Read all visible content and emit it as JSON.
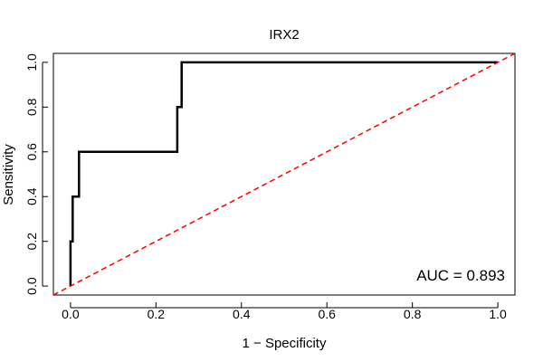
{
  "chart_data": {
    "type": "line",
    "title": "IRX2",
    "xlabel": "1 − Specificity",
    "ylabel": "Sensitivity",
    "xlim": [
      -0.04,
      1.04
    ],
    "ylim": [
      -0.04,
      1.04
    ],
    "x_ticks": [
      0.0,
      0.2,
      0.4,
      0.6,
      0.8,
      1.0
    ],
    "y_ticks": [
      0.0,
      0.2,
      0.4,
      0.6,
      0.8,
      1.0
    ],
    "x_tick_labels": [
      "0.0",
      "0.2",
      "0.4",
      "0.6",
      "0.8",
      "1.0"
    ],
    "y_tick_labels": [
      "0.0",
      "0.2",
      "0.4",
      "0.6",
      "0.8",
      "1.0"
    ],
    "grid": false,
    "series": [
      {
        "color": "#000000",
        "style": "solid",
        "x": [
          0.0,
          0.0,
          0.005,
          0.005,
          0.02,
          0.02,
          0.25,
          0.25,
          0.26,
          0.26,
          1.0
        ],
        "y": [
          0.0,
          0.2,
          0.2,
          0.4,
          0.4,
          0.6,
          0.6,
          0.8,
          0.8,
          1.0,
          1.0
        ]
      },
      {
        "color": "#ff0000",
        "style": "dashed",
        "x": [
          -0.04,
          1.04
        ],
        "y": [
          -0.04,
          1.04
        ]
      }
    ],
    "annotation": {
      "text": "AUC = 0.893",
      "placement": "bottom-right"
    }
  }
}
